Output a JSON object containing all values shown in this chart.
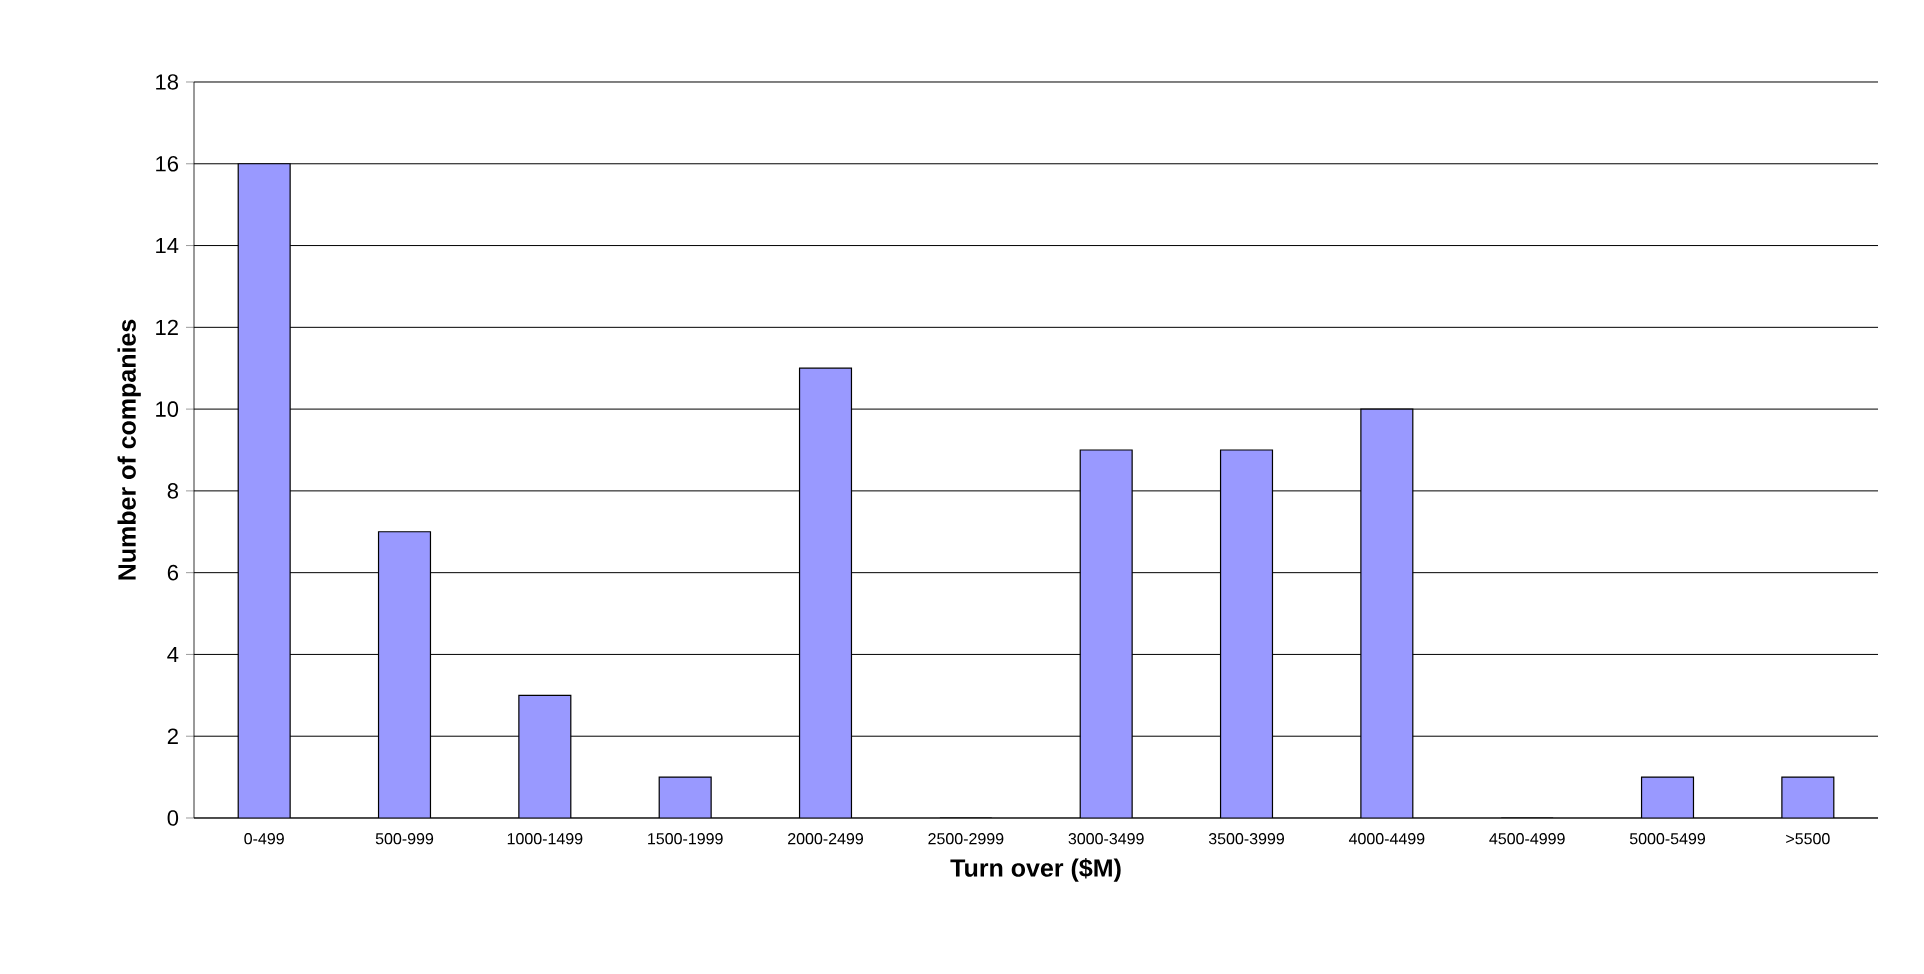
{
  "chart_data": {
    "type": "bar",
    "xlabel": "Turn over ($M)",
    "ylabel": "Number of companies",
    "categories": [
      "0-499",
      "500-999",
      "1000-1499",
      "1500-1999",
      "2000-2499",
      "2500-2999",
      "3000-3499",
      "3500-3999",
      "4000-4499",
      "4500-4999",
      "5000-5499",
      ">5500"
    ],
    "values": [
      16,
      7,
      3,
      1,
      11,
      0,
      9,
      9,
      10,
      0,
      1,
      1
    ],
    "color": "#9999ff",
    "ylim": [
      0,
      18
    ],
    "yticks": [
      0,
      2,
      4,
      6,
      8,
      10,
      12,
      14,
      16,
      18
    ],
    "grid": "y"
  }
}
